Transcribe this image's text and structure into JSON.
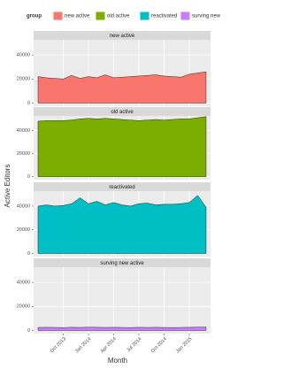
{
  "chart_data": {
    "type": "area",
    "legend_title": "group",
    "y_label": "Active Editors",
    "x_label": "Month",
    "x": [
      "2013-07",
      "2013-08",
      "2013-09",
      "2013-10",
      "2013-11",
      "2013-12",
      "2014-01",
      "2014-02",
      "2014-03",
      "2014-04",
      "2014-05",
      "2014-06",
      "2014-07",
      "2014-08",
      "2014-09",
      "2014-10",
      "2014-11",
      "2014-12",
      "2015-01",
      "2015-02",
      "2015-03"
    ],
    "xticks": [
      {
        "value": "2013-10",
        "label": "Oct 2013"
      },
      {
        "value": "2014-01",
        "label": "Jan 2014"
      },
      {
        "value": "2014-04",
        "label": "Apr 2014"
      },
      {
        "value": "2014-07",
        "label": "Jul 2014"
      },
      {
        "value": "2014-10",
        "label": "Oct 2014"
      },
      {
        "value": "2015-01",
        "label": "Jan 2015"
      }
    ],
    "ylim": [
      -2600,
      52600
    ],
    "yticks": [
      0,
      20000,
      40000
    ],
    "grid": true,
    "series": [
      {
        "name": "new active",
        "color": "#F8766D",
        "values": [
          22000,
          21000,
          20500,
          20000,
          23000,
          20500,
          22000,
          21000,
          23500,
          21000,
          21500,
          22000,
          22500,
          23000,
          23500,
          22500,
          22000,
          21500,
          24000,
          25000,
          26000
        ]
      },
      {
        "name": "old active",
        "color": "#7CAE00",
        "values": [
          48000,
          48500,
          48500,
          48500,
          49000,
          50000,
          50500,
          50000,
          50500,
          50000,
          49500,
          49000,
          48500,
          49000,
          49500,
          49000,
          49500,
          50000,
          50000,
          51000,
          52000
        ]
      },
      {
        "name": "reactivated",
        "color": "#00BFC4",
        "values": [
          40000,
          41000,
          40000,
          40500,
          42000,
          47000,
          42000,
          44000,
          41000,
          43000,
          41000,
          40000,
          42000,
          42500,
          41000,
          41500,
          41500,
          42000,
          43000,
          49000,
          39000
        ]
      },
      {
        "name": "surving new active",
        "color": "#C77CFF",
        "values": [
          2500,
          2600,
          2500,
          2400,
          2600,
          2500,
          2700,
          2600,
          2500,
          2600,
          2500,
          2400,
          2600,
          2500,
          2600,
          2500,
          2400,
          2500,
          2600,
          2700,
          2800
        ]
      }
    ]
  }
}
